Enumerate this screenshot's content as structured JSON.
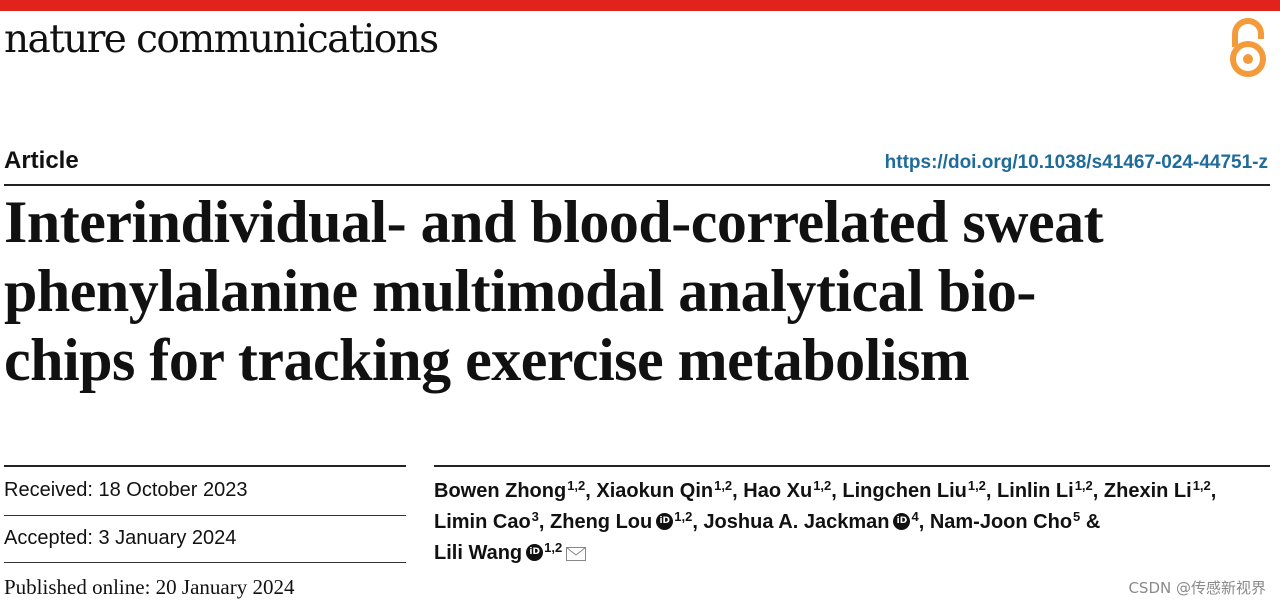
{
  "journal": {
    "name": "nature communications",
    "accent_color": "#e0231b",
    "open_access_icon": "open-access-icon",
    "open_access_color": "#f39a3a"
  },
  "article": {
    "type": "Article",
    "doi": "https://doi.org/10.1038/s41467-024-44751-z",
    "title_lines": [
      "Interindividual- and blood-correlated sweat",
      "phenylalanine multimodal analytical bio-",
      "chips for tracking exercise metabolism"
    ]
  },
  "dates": {
    "received": "Received: 18 October 2023",
    "accepted": "Accepted: 3 January 2024",
    "published": "Published online: 20 January 2024"
  },
  "authors": [
    {
      "name": "Bowen Zhong",
      "aff": "1,2",
      "sep": ", "
    },
    {
      "name": "Xiaokun Qin",
      "aff": "1,2",
      "sep": ", "
    },
    {
      "name": "Hao Xu",
      "aff": "1,2",
      "sep": ", "
    },
    {
      "name": "Lingchen Liu",
      "aff": "1,2",
      "sep": ", "
    },
    {
      "name": "Linlin Li",
      "aff": "1,2",
      "sep": ", "
    },
    {
      "name": "Zhexin Li",
      "aff": "1,2",
      "sep": ","
    },
    {
      "name": "Limin Cao",
      "aff": "3",
      "sep": ", "
    },
    {
      "name": "Zheng Lou",
      "aff": "1,2",
      "sep": ", "
    },
    {
      "name": "Joshua A. Jackman",
      "aff": "4",
      "sep": ", "
    },
    {
      "name": "Nam-Joon Cho",
      "aff": "5",
      "sep": " &"
    },
    {
      "name": "Lili Wang",
      "aff": "1,2",
      "sep": ""
    }
  ],
  "watermark": "CSDN @传感新视界"
}
